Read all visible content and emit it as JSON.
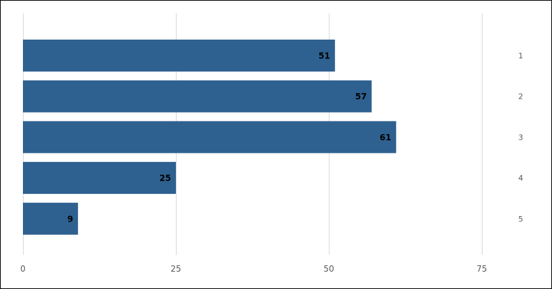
{
  "chart_data": {
    "type": "bar",
    "orientation": "horizontal",
    "categories": [
      "1",
      "2",
      "3",
      "4",
      "5"
    ],
    "values": [
      51,
      57,
      61,
      25,
      9
    ],
    "xlim": [
      0,
      75
    ],
    "xticks": [
      "0",
      "25",
      "50",
      "75"
    ],
    "grid": true,
    "bar_color": "#2e6190",
    "category_labels_side": "right",
    "data_labels": true,
    "title": "",
    "xlabel": "",
    "ylabel": ""
  }
}
